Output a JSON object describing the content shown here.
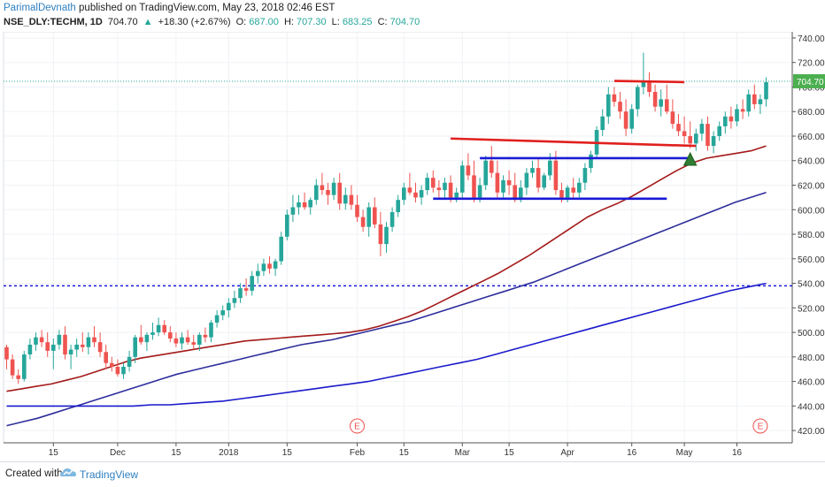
{
  "header": {
    "author": "ParimalDevnath",
    "published_text": "published on TradingView.com, May 23, 2018 02:46 EST",
    "symbol": "NSE_DLY:TECHM, 1D",
    "last": "704.70",
    "change": "+18.30 (+2.67%)",
    "open_label": "O:",
    "open": "687.00",
    "high_label": "H:",
    "high": "707.30",
    "low_label": "L:",
    "low": "683.25",
    "close_label": "C:",
    "close": "704.70"
  },
  "footer": {
    "created_with": "Created with",
    "brand": "TradingView"
  },
  "colors": {
    "up": "#26a69a",
    "down": "#ef5350",
    "ma_red": "#a41a1a",
    "ma_navy": "#2d2d9c",
    "ma_blue": "#1a1acb",
    "hline_red": "#e0201e",
    "hline_blue": "#1a1ad6",
    "price_tag": "#4caf50"
  },
  "chart_data": {
    "type": "candlestick",
    "price_axis": {
      "min": 410,
      "max": 745,
      "ticks": [
        420,
        440,
        460,
        480,
        500,
        520,
        540,
        560,
        580,
        600,
        620,
        640,
        660,
        680,
        700,
        720,
        740
      ]
    },
    "time_axis_labels": [
      {
        "label": "15",
        "bar": 8
      },
      {
        "label": "Dec",
        "bar": 19
      },
      {
        "label": "15",
        "bar": 29
      },
      {
        "label": "2018",
        "bar": 38
      },
      {
        "label": "15",
        "bar": 48
      },
      {
        "label": "Feb",
        "bar": 60
      },
      {
        "label": "15",
        "bar": 68
      },
      {
        "label": "Mar",
        "bar": 78
      },
      {
        "label": "15",
        "bar": 86
      },
      {
        "label": "Apr",
        "bar": 96
      },
      {
        "label": "16",
        "bar": 107
      },
      {
        "label": "May",
        "bar": 116
      },
      {
        "label": "16",
        "bar": 125
      }
    ],
    "last_price_tag": "704.70",
    "last_price": 704.7,
    "dotted_level": 538,
    "candles": [
      [
        488,
        490,
        470,
        478
      ],
      [
        478,
        482,
        462,
        465
      ],
      [
        465,
        470,
        458,
        462
      ],
      [
        462,
        485,
        460,
        482
      ],
      [
        482,
        495,
        478,
        490
      ],
      [
        490,
        500,
        485,
        496
      ],
      [
        496,
        502,
        488,
        492
      ],
      [
        492,
        500,
        480,
        485
      ],
      [
        485,
        495,
        470,
        490
      ],
      [
        490,
        502,
        486,
        498
      ],
      [
        498,
        505,
        478,
        482
      ],
      [
        482,
        490,
        470,
        486
      ],
      [
        486,
        495,
        480,
        490
      ],
      [
        490,
        500,
        484,
        488
      ],
      [
        488,
        500,
        482,
        496
      ],
      [
        496,
        505,
        488,
        492
      ],
      [
        492,
        500,
        480,
        484
      ],
      [
        484,
        490,
        470,
        475
      ],
      [
        475,
        480,
        468,
        472
      ],
      [
        472,
        478,
        464,
        466
      ],
      [
        466,
        475,
        462,
        472
      ],
      [
        472,
        485,
        468,
        480
      ],
      [
        480,
        498,
        475,
        496
      ],
      [
        496,
        506,
        490,
        492
      ],
      [
        492,
        500,
        485,
        498
      ],
      [
        498,
        508,
        494,
        500
      ],
      [
        500,
        512,
        497,
        506
      ],
      [
        506,
        510,
        498,
        500
      ],
      [
        500,
        505,
        492,
        495
      ],
      [
        495,
        500,
        488,
        491
      ],
      [
        491,
        500,
        486,
        496
      ],
      [
        496,
        502,
        490,
        492
      ],
      [
        492,
        498,
        486,
        490
      ],
      [
        490,
        500,
        485,
        498
      ],
      [
        498,
        504,
        492,
        496
      ],
      [
        496,
        510,
        492,
        508
      ],
      [
        508,
        518,
        504,
        514
      ],
      [
        514,
        522,
        510,
        518
      ],
      [
        518,
        528,
        512,
        524
      ],
      [
        524,
        534,
        520,
        528
      ],
      [
        528,
        540,
        524,
        536
      ],
      [
        536,
        544,
        530,
        534
      ],
      [
        534,
        550,
        530,
        546
      ],
      [
        546,
        556,
        540,
        550
      ],
      [
        550,
        560,
        546,
        556
      ],
      [
        556,
        562,
        548,
        552
      ],
      [
        552,
        560,
        546,
        558
      ],
      [
        558,
        582,
        555,
        578
      ],
      [
        578,
        600,
        575,
        596
      ],
      [
        596,
        612,
        590,
        602
      ],
      [
        602,
        612,
        596,
        606
      ],
      [
        606,
        614,
        600,
        602
      ],
      [
        602,
        610,
        596,
        608
      ],
      [
        608,
        625,
        604,
        620
      ],
      [
        620,
        630,
        612,
        616
      ],
      [
        616,
        622,
        604,
        612
      ],
      [
        612,
        626,
        608,
        622
      ],
      [
        622,
        630,
        600,
        605
      ],
      [
        605,
        618,
        600,
        612
      ],
      [
        612,
        620,
        600,
        604
      ],
      [
        604,
        612,
        590,
        594
      ],
      [
        594,
        600,
        582,
        586
      ],
      [
        586,
        606,
        578,
        602
      ],
      [
        602,
        610,
        585,
        588
      ],
      [
        588,
        598,
        562,
        572
      ],
      [
        572,
        590,
        565,
        586
      ],
      [
        586,
        602,
        582,
        598
      ],
      [
        598,
        612,
        594,
        608
      ],
      [
        608,
        622,
        604,
        618
      ],
      [
        618,
        630,
        612,
        614
      ],
      [
        614,
        622,
        606,
        610
      ],
      [
        610,
        620,
        604,
        616
      ],
      [
        616,
        630,
        612,
        626
      ],
      [
        626,
        632,
        614,
        618
      ],
      [
        618,
        624,
        610,
        616
      ],
      [
        616,
        626,
        608,
        622
      ],
      [
        622,
        628,
        606,
        610
      ],
      [
        610,
        618,
        606,
        614
      ],
      [
        614,
        640,
        610,
        636
      ],
      [
        636,
        646,
        624,
        628
      ],
      [
        628,
        640,
        606,
        610
      ],
      [
        610,
        626,
        606,
        620
      ],
      [
        620,
        644,
        616,
        640
      ],
      [
        640,
        652,
        626,
        630
      ],
      [
        630,
        640,
        610,
        614
      ],
      [
        614,
        628,
        610,
        624
      ],
      [
        624,
        632,
        612,
        620
      ],
      [
        620,
        630,
        606,
        608
      ],
      [
        608,
        624,
        606,
        618
      ],
      [
        618,
        634,
        612,
        630
      ],
      [
        630,
        640,
        626,
        634
      ],
      [
        634,
        642,
        614,
        618
      ],
      [
        618,
        630,
        616,
        628
      ],
      [
        628,
        646,
        624,
        640
      ],
      [
        640,
        648,
        612,
        616
      ],
      [
        616,
        622,
        606,
        610
      ],
      [
        610,
        620,
        606,
        618
      ],
      [
        618,
        626,
        610,
        614
      ],
      [
        614,
        626,
        610,
        622
      ],
      [
        622,
        638,
        616,
        634
      ],
      [
        634,
        648,
        630,
        645
      ],
      [
        645,
        668,
        642,
        665
      ],
      [
        665,
        682,
        660,
        676
      ],
      [
        676,
        700,
        670,
        694
      ],
      [
        694,
        700,
        684,
        688
      ],
      [
        688,
        696,
        674,
        680
      ],
      [
        680,
        690,
        660,
        666
      ],
      [
        666,
        686,
        662,
        682
      ],
      [
        682,
        702,
        676,
        700
      ],
      [
        700,
        728,
        694,
        704
      ],
      [
        704,
        712,
        692,
        696
      ],
      [
        696,
        702,
        680,
        684
      ],
      [
        684,
        698,
        676,
        690
      ],
      [
        690,
        702,
        678,
        680
      ],
      [
        680,
        690,
        666,
        670
      ],
      [
        670,
        678,
        660,
        664
      ],
      [
        664,
        676,
        654,
        660
      ],
      [
        660,
        672,
        650,
        654
      ],
      [
        654,
        666,
        648,
        662
      ],
      [
        662,
        674,
        656,
        670
      ],
      [
        670,
        676,
        648,
        652
      ],
      [
        652,
        664,
        646,
        660
      ],
      [
        660,
        672,
        656,
        668
      ],
      [
        668,
        680,
        662,
        676
      ],
      [
        676,
        684,
        666,
        672
      ],
      [
        672,
        686,
        668,
        682
      ],
      [
        682,
        690,
        674,
        680
      ],
      [
        680,
        698,
        676,
        694
      ],
      [
        694,
        702,
        682,
        686
      ],
      [
        686,
        694,
        678,
        690
      ],
      [
        690,
        708,
        684,
        704
      ]
    ],
    "moving_averages": [
      {
        "color": "#a41a1a",
        "from_bar": 0,
        "values": [
          452,
          454,
          456,
          458,
          461,
          464,
          468,
          472,
          476,
          479,
          481,
          483,
          485,
          487,
          489,
          491,
          493,
          494,
          495,
          496,
          497,
          498,
          499,
          500,
          502,
          505,
          509,
          513,
          518,
          524,
          530,
          536,
          542,
          548,
          555,
          562,
          570,
          578,
          586,
          594,
          600,
          605,
          611,
          618,
          625,
          632,
          638,
          642,
          644,
          646,
          648,
          652
        ]
      },
      {
        "color": "#2d2d9c",
        "from_bar": 0,
        "values": [
          424,
          427,
          430,
          434,
          438,
          442,
          446,
          450,
          454,
          458,
          462,
          466,
          469,
          472,
          475,
          478,
          481,
          484,
          487,
          490,
          492,
          494,
          497,
          500,
          503,
          506,
          509,
          513,
          517,
          521,
          525,
          529,
          533,
          537,
          541,
          546,
          551,
          556,
          561,
          566,
          571,
          576,
          581,
          586,
          591,
          596,
          601,
          606,
          610,
          614
        ]
      },
      {
        "color": "#1a1acb",
        "from_bar": 0,
        "values": [
          440,
          440,
          440,
          440,
          440,
          440,
          440,
          440,
          441,
          441,
          442,
          443,
          444,
          446,
          448,
          450,
          452,
          454,
          456,
          458,
          460,
          463,
          466,
          469,
          472,
          475,
          478,
          482,
          486,
          490,
          494,
          498,
          502,
          506,
          510,
          514,
          518,
          522,
          526,
          530,
          534,
          537,
          540
        ]
      }
    ],
    "levels": [
      {
        "color": "#e0201e",
        "from_bar": 76,
        "to_bar": 118,
        "y_start": 658,
        "y_end": 652
      },
      {
        "color": "#e0201e",
        "from_bar": 104,
        "to_bar": 116,
        "y_start": 705,
        "y_end": 704
      },
      {
        "color": "#1a1ad6",
        "from_bar": 81,
        "to_bar": 117,
        "y_start": 642,
        "y_end": 642
      },
      {
        "color": "#1a1ad6",
        "from_bar": 73,
        "to_bar": 113,
        "y_start": 609,
        "y_end": 609
      }
    ],
    "event_markers": [
      {
        "label": "E",
        "bar": 60
      },
      {
        "label": "E",
        "bar": 129
      }
    ],
    "triangle_marker": {
      "bar": 117,
      "price": 642
    }
  }
}
